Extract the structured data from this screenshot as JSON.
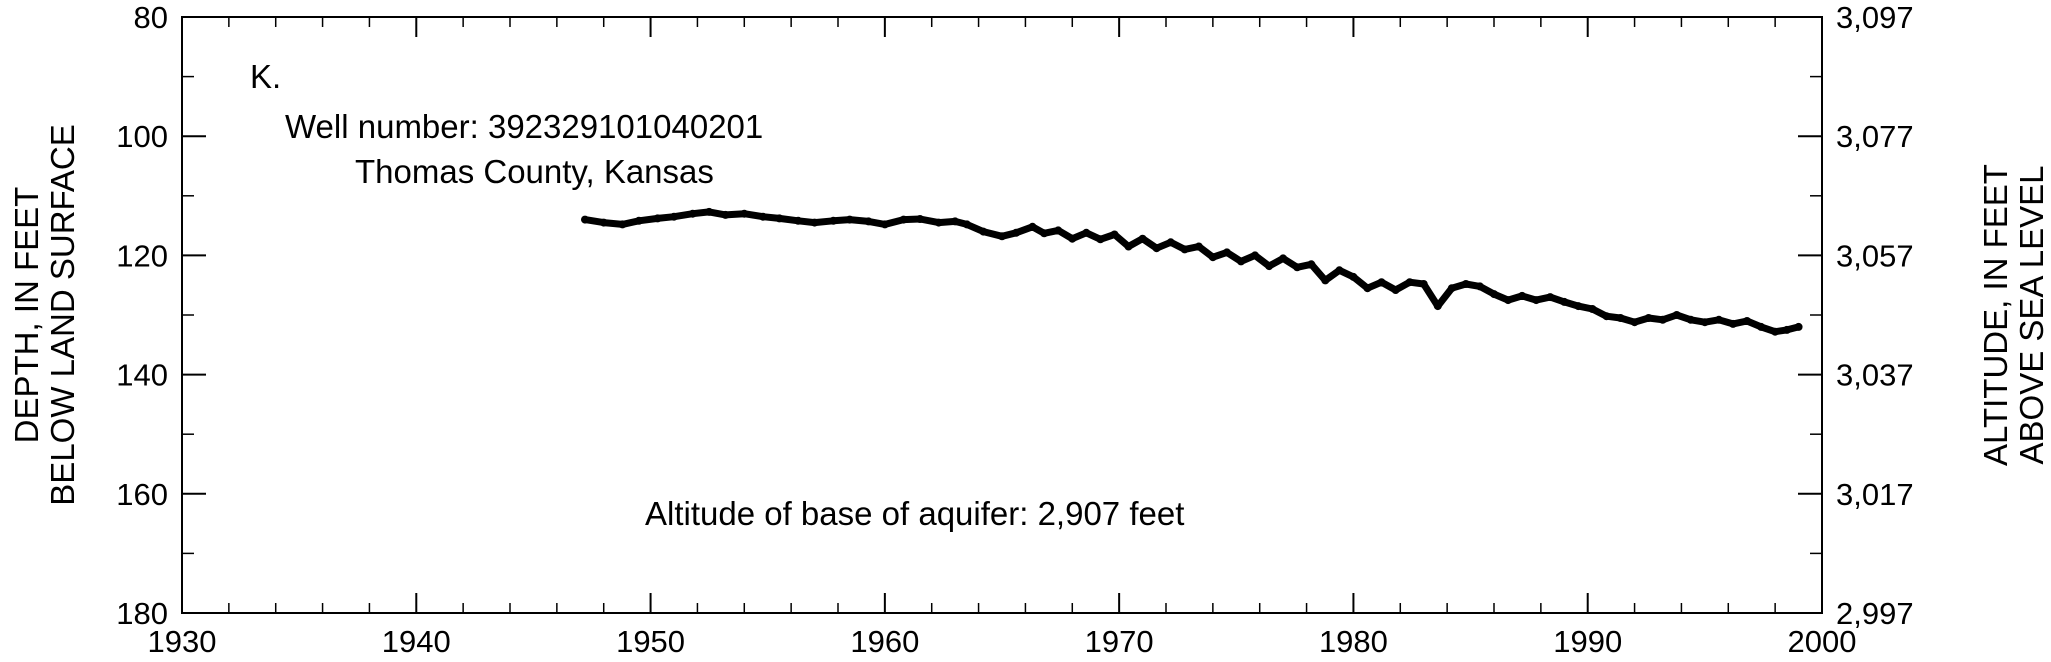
{
  "chart_data": {
    "type": "line",
    "panel_label": "K.",
    "annotations": {
      "well_number": "Well number: 392329101040201",
      "county": "Thomas County, Kansas",
      "aquifer_base": "Altitude of base of aquifer: 2,907 feet"
    },
    "y_label_line1": "DEPTH, IN FEET",
    "y_label_line2": "BELOW LAND SURFACE",
    "y2_label_line1": "ALTITUDE, IN FEET",
    "y2_label_line2": "ABOVE SEA LEVEL",
    "xlim": [
      1930,
      2000
    ],
    "ylim": [
      80,
      180
    ],
    "y_inverted": true,
    "y2lim": [
      3097,
      2997
    ],
    "x_major_ticks": [
      1930,
      1940,
      1950,
      1960,
      1970,
      1980,
      1990,
      2000
    ],
    "x_tick_labels": [
      "1930",
      "1940",
      "1950",
      "1960",
      "1970",
      "1980",
      "1990",
      "2000"
    ],
    "x_minor_step": 2,
    "y_major_ticks": [
      80,
      100,
      120,
      140,
      160,
      180
    ],
    "y_tick_labels": [
      "80",
      "100",
      "120",
      "140",
      "160",
      "180"
    ],
    "y_minor_step": 10,
    "y2_tick_labels": [
      "3,097",
      "3,077",
      "3,057",
      "3,037",
      "3,017",
      "2,997"
    ],
    "grid": false,
    "series": [
      {
        "x": [
          1947.2,
          1948.0,
          1948.8,
          1949.5,
          1950.3,
          1951.0,
          1951.8,
          1952.5,
          1953.2,
          1954.0,
          1954.8,
          1955.5,
          1956.3,
          1957.0,
          1957.8,
          1958.5,
          1959.3,
          1960.0,
          1960.8,
          1961.5,
          1962.3,
          1963.0,
          1963.5,
          1964.2,
          1965.0,
          1965.6,
          1966.3,
          1966.8,
          1967.4,
          1968.0,
          1968.6,
          1969.2,
          1969.8,
          1970.4,
          1971.0,
          1971.6,
          1972.2,
          1972.8,
          1973.4,
          1974.0,
          1974.6,
          1975.2,
          1975.8,
          1976.4,
          1977.0,
          1977.6,
          1978.2,
          1978.8,
          1979.4,
          1980.0,
          1980.6,
          1981.2,
          1981.8,
          1982.4,
          1983.0,
          1983.6,
          1984.2,
          1984.8,
          1985.4,
          1986.0,
          1986.6,
          1987.2,
          1987.8,
          1988.4,
          1989.0,
          1989.6,
          1990.2,
          1990.8,
          1991.4,
          1992.0,
          1992.6,
          1993.2,
          1993.8,
          1994.4,
          1995.0,
          1995.6,
          1996.2,
          1996.8,
          1997.4,
          1998.0,
          1998.5,
          1999.0
        ],
        "y": [
          114.0,
          114.5,
          114.8,
          114.2,
          113.8,
          113.5,
          113.0,
          112.7,
          113.2,
          113.0,
          113.5,
          113.8,
          114.2,
          114.5,
          114.2,
          114.0,
          114.3,
          114.8,
          114.0,
          113.9,
          114.5,
          114.3,
          114.8,
          116.0,
          116.8,
          116.2,
          115.2,
          116.3,
          115.8,
          117.2,
          116.2,
          117.3,
          116.5,
          118.5,
          117.2,
          118.8,
          117.8,
          119.0,
          118.5,
          120.3,
          119.5,
          121.0,
          120.0,
          121.8,
          120.5,
          122.0,
          121.5,
          124.2,
          122.5,
          123.6,
          125.5,
          124.5,
          125.8,
          124.5,
          124.8,
          128.5,
          125.5,
          124.8,
          125.2,
          126.5,
          127.5,
          126.8,
          127.5,
          127.0,
          127.8,
          128.5,
          129.0,
          130.2,
          130.5,
          131.2,
          130.5,
          130.8,
          130.0,
          130.8,
          131.2,
          130.8,
          131.5,
          131.0,
          132.0,
          132.8,
          132.5,
          132.0
        ]
      }
    ]
  }
}
